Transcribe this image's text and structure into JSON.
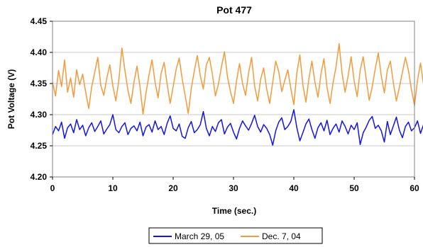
{
  "chart_data": {
    "type": "line",
    "title": "Pot 477",
    "xlabel": "Time (sec.)",
    "ylabel": "Pot Voltage (V)",
    "xlim": [
      0,
      60
    ],
    "ylim": [
      4.2,
      4.45
    ],
    "x_ticks": [
      "0",
      "10",
      "20",
      "30",
      "40",
      "50",
      "60"
    ],
    "y_ticks": [
      "4.20",
      "4.25",
      "4.30",
      "4.35",
      "4.40",
      "4.45"
    ],
    "grid": true,
    "legend_position": "bottom",
    "series": [
      {
        "name": "March 29, 05",
        "color": "#1414e6",
        "x_step": 0.5,
        "values": [
          4.268,
          4.281,
          4.274,
          4.288,
          4.262,
          4.279,
          4.285,
          4.271,
          4.292,
          4.276,
          4.283,
          4.266,
          4.279,
          4.287,
          4.273,
          4.281,
          4.29,
          4.269,
          4.277,
          4.284,
          4.3,
          4.276,
          4.271,
          4.281,
          4.287,
          4.268,
          4.278,
          4.282,
          4.274,
          4.288,
          4.266,
          4.28,
          4.284,
          4.272,
          4.29,
          4.276,
          4.281,
          4.268,
          4.286,
          4.298,
          4.278,
          4.274,
          4.285,
          4.265,
          4.262,
          4.279,
          4.289,
          4.271,
          4.276,
          4.284,
          4.305,
          4.278,
          4.266,
          4.281,
          4.273,
          4.287,
          4.292,
          4.269,
          4.28,
          4.286,
          4.272,
          4.261,
          4.278,
          4.29,
          4.282,
          4.275,
          4.286,
          4.299,
          4.281,
          4.272,
          4.284,
          4.278,
          4.268,
          4.251,
          4.274,
          4.288,
          4.295,
          4.276,
          4.281,
          4.289,
          4.308,
          4.279,
          4.258,
          4.271,
          4.285,
          4.293,
          4.276,
          4.262,
          4.279,
          4.287,
          4.274,
          4.291,
          4.268,
          4.278,
          4.285,
          4.272,
          4.29,
          4.281,
          4.269,
          4.283,
          4.276,
          4.287,
          4.252,
          4.271,
          4.28,
          4.291,
          4.297,
          4.278,
          4.283,
          4.274,
          4.256,
          4.289,
          4.268,
          4.282,
          4.296,
          4.275,
          4.263,
          4.281,
          4.288,
          4.274,
          4.279,
          4.29,
          4.27,
          4.284,
          4.276,
          4.261,
          4.287,
          4.278,
          4.273,
          4.294,
          4.281,
          4.269,
          4.286,
          4.298,
          4.276,
          4.282,
          4.275,
          4.29,
          4.267,
          4.284,
          4.319,
          4.296,
          4.279,
          4.262,
          4.285,
          4.291,
          4.276,
          4.249,
          4.272,
          4.285,
          4.305,
          4.288,
          4.271,
          4.266,
          4.283,
          4.29,
          4.276,
          4.28,
          4.268,
          4.287,
          4.273,
          4.294,
          4.279,
          4.262,
          4.285,
          4.29,
          4.276,
          4.3,
          4.281,
          4.268,
          4.277,
          4.285,
          4.274,
          4.288,
          4.303,
          4.283,
          4.271,
          4.26,
          4.28,
          4.293,
          4.275,
          4.266,
          4.283,
          4.289,
          4.277,
          4.271,
          4.286,
          4.28,
          4.298,
          4.273,
          4.259,
          4.277,
          4.286,
          4.305,
          4.282,
          4.271,
          4.267,
          4.285,
          4.278,
          4.291,
          4.281,
          4.246,
          4.268,
          4.28,
          4.297,
          4.285,
          4.274,
          4.263,
          4.279,
          4.288,
          4.296,
          4.276,
          4.27,
          4.284,
          4.258,
          4.275,
          4.288,
          4.279,
          4.3,
          4.286,
          4.273,
          4.262,
          4.278,
          4.291,
          4.283,
          4.27,
          4.287,
          4.279,
          4.247,
          4.266,
          4.281
        ]
      },
      {
        "name": "Dec. 7, 04",
        "color": "#f39a3b",
        "x_step": 0.5,
        "values": [
          4.352,
          4.33,
          4.371,
          4.345,
          4.388,
          4.336,
          4.359,
          4.328,
          4.372,
          4.348,
          4.365,
          4.336,
          4.31,
          4.345,
          4.368,
          4.392,
          4.347,
          4.331,
          4.359,
          4.38,
          4.346,
          4.322,
          4.356,
          4.407,
          4.371,
          4.339,
          4.318,
          4.352,
          4.378,
          4.345,
          4.301,
          4.335,
          4.364,
          4.388,
          4.352,
          4.327,
          4.366,
          4.384,
          4.349,
          4.318,
          4.345,
          4.373,
          4.391,
          4.357,
          4.33,
          4.302,
          4.342,
          4.37,
          4.395,
          4.362,
          4.341,
          4.38,
          4.392,
          4.365,
          4.33,
          4.349,
          4.377,
          4.401,
          4.361,
          4.337,
          4.318,
          4.354,
          4.382,
          4.35,
          4.331,
          4.367,
          4.392,
          4.346,
          4.322,
          4.357,
          4.375,
          4.341,
          4.318,
          4.352,
          4.386,
          4.369,
          4.337,
          4.355,
          4.372,
          4.342,
          4.316,
          4.367,
          4.396,
          4.348,
          4.32,
          4.358,
          4.386,
          4.352,
          4.328,
          4.365,
          4.39,
          4.344,
          4.318,
          4.351,
          4.377,
          4.414,
          4.366,
          4.336,
          4.362,
          4.393,
          4.354,
          4.329,
          4.371,
          4.393,
          4.357,
          4.323,
          4.345,
          4.374,
          4.399,
          4.362,
          4.335,
          4.371,
          4.386,
          4.351,
          4.322,
          4.344,
          4.368,
          4.392,
          4.371,
          4.34,
          4.315,
          4.355,
          4.383,
          4.348,
          4.318,
          4.361,
          4.395,
          4.366,
          4.333,
          4.358,
          4.384,
          4.349,
          4.32,
          4.352,
          4.378,
          4.31,
          4.345,
          4.402,
          4.37,
          4.318,
          4.351,
          4.388,
          4.361,
          4.336,
          4.418,
          4.375,
          4.33,
          4.296,
          4.348,
          4.386,
          4.355,
          4.321,
          4.368,
          4.393,
          4.345,
          4.32,
          4.373,
          4.399,
          4.354,
          4.328,
          4.362,
          4.39,
          4.346,
          4.322,
          4.357,
          4.378,
          4.402,
          4.356,
          4.332,
          4.318,
          4.365,
          4.392,
          4.35,
          4.326,
          4.359,
          4.409,
          4.373,
          4.338,
          4.363,
          4.391,
          4.352,
          4.328,
          4.366,
          4.388,
          4.343,
          4.317,
          4.356,
          4.385,
          4.361,
          4.335,
          4.371,
          4.392,
          4.356,
          4.322,
          4.346,
          4.378,
          4.356,
          4.32,
          4.348,
          4.384,
          4.362,
          4.334,
          4.368,
          4.391,
          4.354,
          4.33,
          4.366,
          4.389,
          4.344,
          4.318,
          4.358,
          4.397,
          4.362,
          4.338,
          4.371,
          4.345,
          4.318,
          4.362,
          4.394,
          4.353,
          4.326,
          4.367,
          4.384,
          4.342,
          4.313,
          4.358,
          4.381,
          4.351,
          4.331,
          4.372,
          4.39,
          4.348,
          4.32,
          4.362
        ]
      }
    ]
  }
}
